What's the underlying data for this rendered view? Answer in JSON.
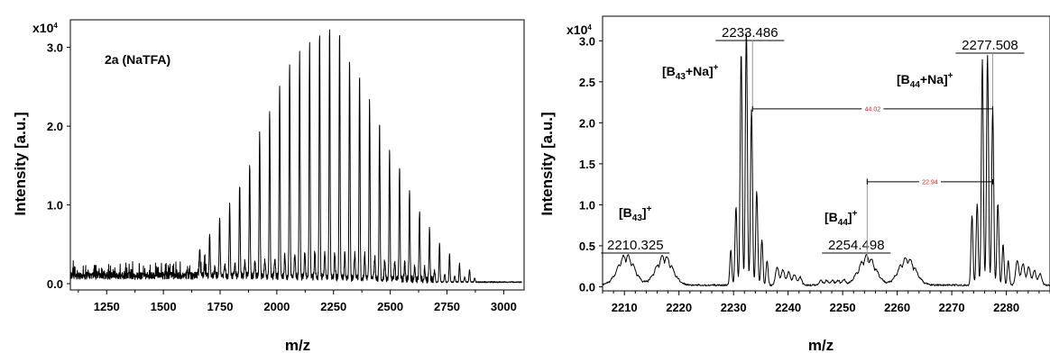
{
  "chart_data": [
    {
      "type": "line",
      "panel": "left",
      "xlabel": "m/z",
      "ylabel": "Intensity [a.u.]",
      "y_multiplier": "x10",
      "y_multiplier_exp": "4",
      "xlim": [
        1090,
        3090
      ],
      "ylim": [
        -0.08,
        3.35
      ],
      "xticks": [
        1250,
        1500,
        1750,
        2000,
        2250,
        2500,
        2750,
        3000
      ],
      "yticks": [
        0.0,
        1.0,
        2.0,
        3.0
      ],
      "ytick_labels": [
        "0.0",
        "1.0",
        "2.0",
        "3.0"
      ],
      "annotation": "2a (NaTFA)",
      "peak_spacing": 44.05,
      "peak_start": 1660,
      "peak_count": 28,
      "envelope_center": 2205,
      "envelope_sigma": 265,
      "envelope_max": 3.15,
      "secondary_offset": 22.9,
      "secondary_max": 0.33,
      "baseline": 0.1,
      "color": "#000000"
    },
    {
      "type": "line",
      "panel": "right",
      "xlabel": "m/z",
      "ylabel": "Intensity [a.u.]",
      "y_multiplier": "x10",
      "y_multiplier_exp": "4",
      "xlim": [
        2206,
        2288
      ],
      "ylim": [
        -0.05,
        3.3
      ],
      "xticks": [
        2210,
        2220,
        2230,
        2240,
        2250,
        2260,
        2270,
        2280
      ],
      "yticks": [
        0.0,
        0.5,
        1.0,
        1.5,
        2.0,
        2.5,
        3.0
      ],
      "ytick_labels": [
        "0.0",
        "0.5",
        "1.0",
        "1.5",
        "2.0",
        "2.5",
        "3.0"
      ],
      "clusters": [
        {
          "center": 2233.0,
          "peaks": [
            0.42,
            0.95,
            2.85,
            3.12,
            2.15,
            1.15,
            0.55,
            0.3
          ],
          "start": 2229.5
        },
        {
          "center": 2277.0,
          "peaks": [
            0.85,
            1.0,
            2.75,
            2.8,
            2.15,
            1.0,
            0.5,
            0.3
          ],
          "start": 2273.7
        }
      ],
      "humps": [
        {
          "x": 2210.3,
          "h": 0.33
        },
        {
          "x": 2217.3,
          "h": 0.32
        },
        {
          "x": 2254.5,
          "h": 0.32
        },
        {
          "x": 2261.8,
          "h": 0.3
        }
      ],
      "peak_labels": [
        {
          "label": "2233.486",
          "x": 2233.486
        },
        {
          "label": "2277.508",
          "x": 2277.508
        },
        {
          "label": "2210.325",
          "x": 2210.325
        },
        {
          "label": "2254.498",
          "x": 2254.498
        }
      ],
      "species": [
        {
          "main": "[B",
          "sub": "43",
          "rest": "+Na]",
          "sup": "+"
        },
        {
          "main": "[B",
          "sub": "44",
          "rest": "+Na]",
          "sup": "+"
        },
        {
          "main": "[B",
          "sub": "43",
          "rest": "]",
          "sup": "+"
        },
        {
          "main": "[B",
          "sub": "44",
          "rest": "]",
          "sup": "+"
        }
      ],
      "deltas": [
        {
          "label": "44.02",
          "x1": 2233.486,
          "x2": 2277.508,
          "y": 2.17
        },
        {
          "label": "22.94",
          "x1": 2254.498,
          "x2": 2277.508,
          "y": 1.28
        }
      ],
      "color": "#000000"
    }
  ]
}
